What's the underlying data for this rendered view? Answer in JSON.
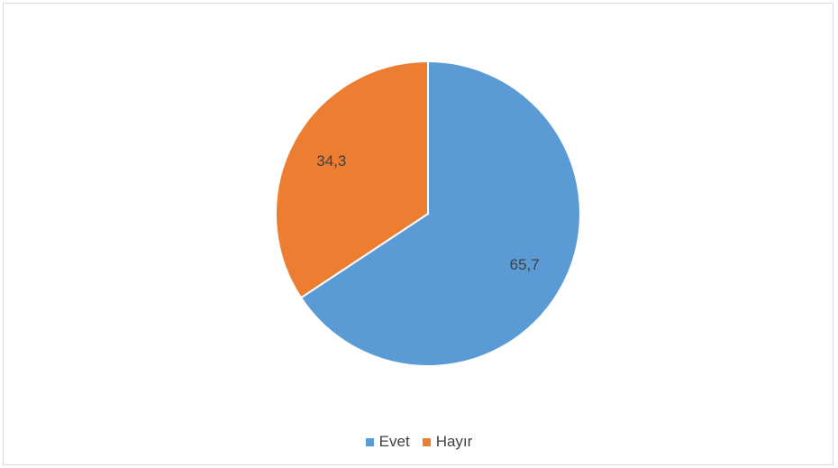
{
  "chart_data": {
    "type": "pie",
    "categories": [
      "Evet",
      "Hayır"
    ],
    "values": [
      65.7,
      34.3
    ],
    "value_labels": [
      "65,7",
      "34,3"
    ],
    "colors": [
      "#5b9bd5",
      "#ed7d31"
    ],
    "legend_position": "bottom",
    "start_angle": "12 o'clock",
    "direction": "clockwise"
  }
}
